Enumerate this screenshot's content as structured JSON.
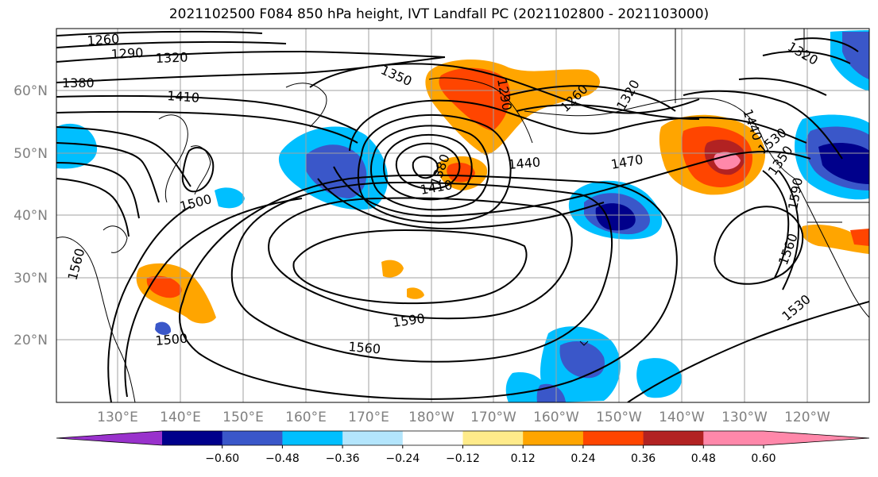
{
  "title": "2021102500 F084 850 hPa height, IVT Landfall PC (2021102800 - 2021103000)",
  "lat_labels": [
    "60°N",
    "50°N",
    "40°N",
    "30°N",
    "20°N"
  ],
  "lon_labels": [
    "130°E",
    "140°E",
    "150°E",
    "160°E",
    "170°E",
    "180°W",
    "170°W",
    "160°W",
    "150°W",
    "140°W",
    "130°W",
    "120°W"
  ],
  "contour_labels": [
    "1260",
    "1290",
    "1320",
    "1380",
    "1410",
    "1350",
    "1290",
    "1260",
    "1320",
    "1320",
    "1440",
    "1470",
    "1380",
    "1410",
    "1440",
    "1350",
    "1500",
    "1560",
    "1590",
    "1560",
    "1500",
    "1560",
    "1530",
    "1590",
    "1530"
  ],
  "colorbar": {
    "ticks": [
      "−0.60",
      "−0.48",
      "−0.36",
      "−0.24",
      "−0.12",
      "0.12",
      "0.24",
      "0.36",
      "0.48",
      "0.60"
    ],
    "colors": [
      "#9932cc",
      "#00008b",
      "#3a57c9",
      "#00bfff",
      "#b3e5fc",
      "#ffffff",
      "#ffeb8a",
      "#ffa500",
      "#ff4500",
      "#b22222",
      "#ff88aa",
      "#ff88aa"
    ]
  }
}
